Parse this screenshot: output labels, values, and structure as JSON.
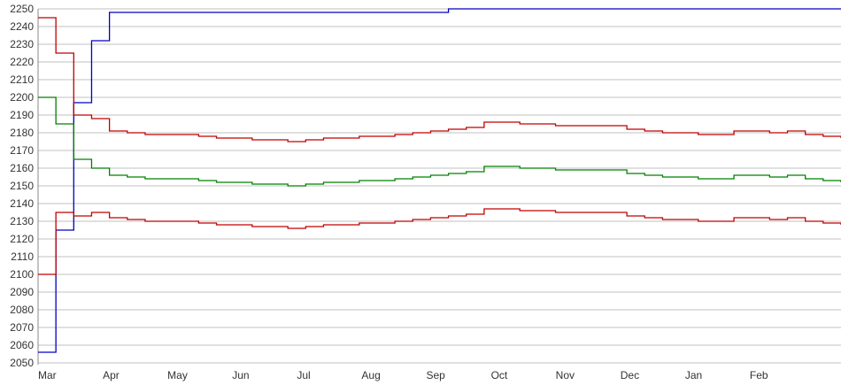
{
  "chart_data": {
    "type": "line",
    "title": "",
    "xlabel": "",
    "ylabel": "",
    "ylim": [
      2050,
      2250
    ],
    "yticks": [
      2050,
      2060,
      2070,
      2080,
      2090,
      2100,
      2110,
      2120,
      2130,
      2140,
      2150,
      2160,
      2170,
      2180,
      2190,
      2200,
      2210,
      2220,
      2230,
      2240,
      2250
    ],
    "grid": "horizontal",
    "legend": "none",
    "xtick_labels": [
      "Mar",
      "Apr",
      "May",
      "Jun",
      "Jul",
      "Aug",
      "Sep",
      "Oct",
      "Nov",
      "Dec",
      "Jan",
      "Feb"
    ],
    "series": [
      {
        "color": "#0000c0",
        "values": [
          2056,
          2125,
          2197,
          2232,
          2248,
          2248,
          2248,
          2248,
          2248,
          2248,
          2248,
          2248,
          2248,
          2248,
          2248,
          2248,
          2248,
          2248,
          2248,
          2248,
          2248,
          2248,
          2248,
          2250,
          2250,
          2250,
          2250,
          2250,
          2250,
          2250,
          2250,
          2250,
          2250,
          2250,
          2250,
          2250,
          2250,
          2250,
          2250,
          2250,
          2250,
          2250,
          2250,
          2250,
          2250,
          2250
        ]
      },
      {
        "color": "#c00000",
        "values": [
          2245,
          2225,
          2190,
          2188,
          2181,
          2180,
          2179,
          2179,
          2179,
          2178,
          2177,
          2177,
          2176,
          2176,
          2175,
          2176,
          2177,
          2177,
          2178,
          2178,
          2179,
          2180,
          2181,
          2182,
          2183,
          2186,
          2186,
          2185,
          2185,
          2184,
          2184,
          2184,
          2184,
          2182,
          2181,
          2180,
          2180,
          2179,
          2179,
          2181,
          2181,
          2180,
          2181,
          2179,
          2178,
          2177
        ]
      },
      {
        "color": "#008000",
        "values": [
          2200,
          2185,
          2165,
          2160,
          2156,
          2155,
          2154,
          2154,
          2154,
          2153,
          2152,
          2152,
          2151,
          2151,
          2150,
          2151,
          2152,
          2152,
          2153,
          2153,
          2154,
          2155,
          2156,
          2157,
          2158,
          2161,
          2161,
          2160,
          2160,
          2159,
          2159,
          2159,
          2159,
          2157,
          2156,
          2155,
          2155,
          2154,
          2154,
          2156,
          2156,
          2155,
          2156,
          2154,
          2153,
          2152
        ]
      },
      {
        "color": "#c00000",
        "values": [
          2100,
          2135,
          2133,
          2135,
          2132,
          2131,
          2130,
          2130,
          2130,
          2129,
          2128,
          2128,
          2127,
          2127,
          2126,
          2127,
          2128,
          2128,
          2129,
          2129,
          2130,
          2131,
          2132,
          2133,
          2134,
          2137,
          2137,
          2136,
          2136,
          2135,
          2135,
          2135,
          2135,
          2133,
          2132,
          2131,
          2131,
          2130,
          2130,
          2132,
          2132,
          2131,
          2132,
          2130,
          2129,
          2128
        ]
      }
    ]
  }
}
